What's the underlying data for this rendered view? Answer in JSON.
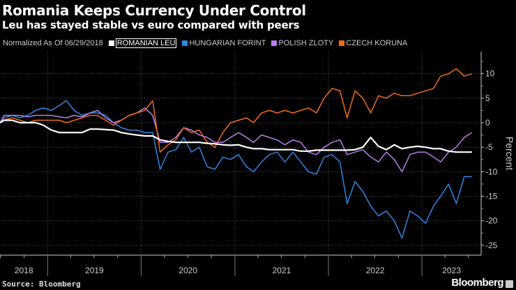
{
  "header": {
    "title": "Romania Keeps Currency Under Control",
    "subtitle": "Leu has stayed stable vs euro compared with peers"
  },
  "legend": {
    "note": "Normalized As Of 06/29/2018"
  },
  "footer": {
    "source": "Source: Bloomberg",
    "brand": "Bloomberg"
  },
  "chart_data": {
    "type": "line",
    "title": "Romania Keeps Currency Under Control",
    "subtitle": "Leu has stayed stable vs euro compared with peers",
    "ylabel": "Percent",
    "ylim": [
      -27,
      14.5
    ],
    "yticks": [
      10,
      5,
      0,
      -5,
      -10,
      -15,
      -20,
      -25
    ],
    "xticks": [
      "2018",
      "2019",
      "2020",
      "2021",
      "2022",
      "2023"
    ],
    "xlim": [
      "2018-06-29",
      "2023-08-20"
    ],
    "grid": true,
    "legend_position": "top",
    "x": [
      "2018-06-29",
      "2018-07",
      "2018-08",
      "2018-09",
      "2018-10",
      "2018-11",
      "2018-12",
      "2019-01",
      "2019-02",
      "2019-03",
      "2019-04",
      "2019-05",
      "2019-06",
      "2019-07",
      "2019-08",
      "2019-09",
      "2019-10",
      "2019-11",
      "2019-12",
      "2020-01",
      "2020-02",
      "2020-03",
      "2020-04",
      "2020-05",
      "2020-06",
      "2020-07",
      "2020-08",
      "2020-09",
      "2020-10",
      "2020-11",
      "2020-12",
      "2021-01",
      "2021-02",
      "2021-03",
      "2021-04",
      "2021-05",
      "2021-06",
      "2021-07",
      "2021-08",
      "2021-09",
      "2021-10",
      "2021-11",
      "2021-12",
      "2022-01",
      "2022-02",
      "2022-03",
      "2022-04",
      "2022-05",
      "2022-06",
      "2022-07",
      "2022-08",
      "2022-09",
      "2022-10",
      "2022-11",
      "2022-12",
      "2023-01",
      "2023-02",
      "2023-03",
      "2023-04",
      "2023-05",
      "2023-06",
      "2023-07"
    ],
    "series": [
      {
        "name": "ROMANIAN LEU",
        "color": "#ffffff",
        "values": [
          0,
          0.5,
          0.5,
          0,
          0,
          0,
          -0.5,
          -1.5,
          -2,
          -2,
          -2,
          -2,
          -1.3,
          -1.3,
          -1.4,
          -1.5,
          -2,
          -2.3,
          -2.5,
          -2.7,
          -2.7,
          -3.5,
          -3.8,
          -4,
          -4,
          -4,
          -4,
          -4.2,
          -4.3,
          -4.5,
          -4.6,
          -4.5,
          -5,
          -5.3,
          -5.3,
          -5.5,
          -5.5,
          -5.5,
          -5.5,
          -5.8,
          -5.8,
          -5.6,
          -5.6,
          -5.6,
          -5.6,
          -5.6,
          -5.5,
          -5,
          -3,
          -4.8,
          -5.5,
          -4.5,
          -5.3,
          -5,
          -4.8,
          -5,
          -5.3,
          -5.3,
          -5.8,
          -6,
          -6,
          -6
        ]
      },
      {
        "name": "HUNGARIAN FORINT",
        "color": "#2f86e6",
        "values": [
          0,
          1,
          1.5,
          1,
          1.5,
          2.5,
          3,
          2.5,
          3.5,
          4.5,
          2.5,
          1.5,
          2,
          2,
          1.5,
          0,
          -1,
          -1.5,
          -1.5,
          -2,
          -2,
          -9.5,
          -6,
          -5.5,
          -3,
          -6,
          -5,
          -9,
          -9.5,
          -7,
          -7.5,
          -6.5,
          -9,
          -10,
          -8,
          -6.5,
          -6,
          -8,
          -6,
          -8,
          -10,
          -10.5,
          -7,
          -6.5,
          -8,
          -16.5,
          -12,
          -14,
          -17,
          -19,
          -18,
          -20,
          -23.5,
          -18,
          -19,
          -20.5,
          -17,
          -15,
          -12.5,
          -16.5,
          -11,
          -11
        ]
      },
      {
        "name": "POLISH ZLOTY",
        "color": "#b87ff0",
        "values": [
          0,
          1.5,
          1.5,
          1.5,
          1.2,
          1.5,
          1.5,
          1.5,
          1.2,
          1,
          1.5,
          1.2,
          2,
          2.5,
          1,
          0,
          0.5,
          1.5,
          2,
          3,
          1.5,
          -4,
          -4,
          -3,
          -1,
          -1.5,
          -2.5,
          -3,
          -4,
          -4,
          -3,
          -2,
          -3,
          -4,
          -2.5,
          -3,
          -3.5,
          -4.5,
          -3.5,
          -4,
          -6,
          -6.5,
          -5,
          -4,
          -3.5,
          -6.5,
          -6,
          -5.5,
          -7,
          -8,
          -6,
          -7.5,
          -10,
          -6.5,
          -6,
          -6,
          -7,
          -8,
          -6,
          -5,
          -3,
          -2
        ]
      },
      {
        "name": "CZECH KORUNA",
        "color": "#f26a1b",
        "values": [
          0,
          0.5,
          1,
          0.5,
          0,
          0.5,
          0.5,
          0.5,
          0.5,
          0,
          0.5,
          1,
          1.5,
          1.5,
          0.5,
          -0.5,
          0.5,
          1.5,
          2,
          2.5,
          4.5,
          -6,
          -4.5,
          -3.5,
          -1,
          -2,
          -1.5,
          -4,
          -5,
          -2,
          0,
          0.5,
          1,
          0,
          2,
          2.5,
          2,
          2.5,
          2,
          2.5,
          3,
          2,
          5,
          7,
          6.5,
          1,
          6.5,
          5,
          2,
          5.5,
          5,
          6,
          5.5,
          5.5,
          6,
          6.5,
          7,
          9.5,
          10,
          11,
          9.5,
          10
        ]
      }
    ]
  }
}
